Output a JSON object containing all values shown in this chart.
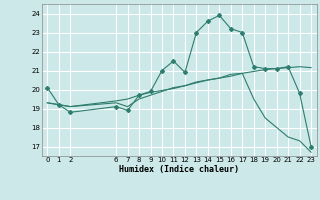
{
  "title": "",
  "xlabel": "Humidex (Indice chaleur)",
  "bg_color": "#cce8e8",
  "grid_color": "#ffffff",
  "line_color": "#2e7d6e",
  "xlim": [
    -0.5,
    23.5
  ],
  "ylim": [
    16.5,
    24.5
  ],
  "yticks": [
    17,
    18,
    19,
    20,
    21,
    22,
    23,
    24
  ],
  "xticks": [
    0,
    1,
    2,
    6,
    7,
    8,
    9,
    10,
    11,
    12,
    13,
    14,
    15,
    16,
    17,
    18,
    19,
    20,
    21,
    22,
    23
  ],
  "series1_x": [
    0,
    1,
    2,
    6,
    7,
    8,
    9,
    10,
    11,
    12,
    13,
    14,
    15,
    16,
    17,
    18,
    19,
    20,
    21,
    22,
    23
  ],
  "series1_y": [
    20.1,
    19.2,
    18.8,
    19.1,
    18.9,
    19.7,
    19.9,
    21.0,
    21.5,
    20.9,
    23.0,
    23.6,
    23.9,
    23.2,
    23.0,
    21.2,
    21.1,
    21.1,
    21.2,
    19.8,
    17.0
  ],
  "series2_x": [
    0,
    1,
    2,
    6,
    7,
    8,
    9,
    10,
    11,
    12,
    13,
    14,
    15,
    16,
    17,
    18,
    19,
    20,
    21,
    22,
    23
  ],
  "series2_y": [
    19.3,
    19.2,
    19.1,
    19.4,
    19.5,
    19.7,
    19.85,
    19.95,
    20.05,
    20.2,
    20.35,
    20.5,
    20.6,
    20.7,
    20.85,
    20.95,
    21.05,
    21.1,
    21.15,
    21.2,
    21.15
  ],
  "series3_x": [
    0,
    1,
    2,
    6,
    7,
    8,
    9,
    10,
    11,
    12,
    13,
    14,
    15,
    16,
    17,
    18,
    19,
    20,
    21,
    22,
    23
  ],
  "series3_y": [
    19.3,
    19.2,
    19.1,
    19.3,
    19.1,
    19.5,
    19.7,
    19.9,
    20.1,
    20.2,
    20.4,
    20.5,
    20.6,
    20.8,
    20.85,
    19.5,
    18.5,
    18.0,
    17.5,
    17.3,
    16.7
  ]
}
